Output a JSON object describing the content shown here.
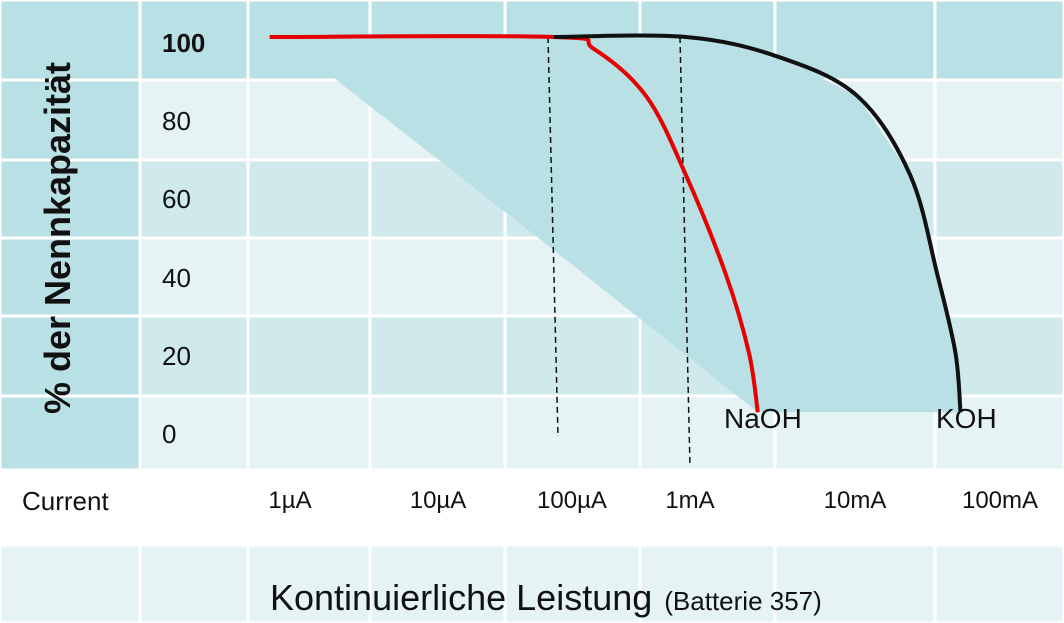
{
  "chart_data": {
    "type": "line",
    "ylabel": "% der Nennkapazität",
    "xlabel_main": "Kontinuierliche Leistung",
    "xlabel_note": "(Batterie 357)",
    "x_row_label": "Current",
    "x_scale": "log",
    "categories": [
      "1µA",
      "10µA",
      "100µA",
      "1mA",
      "10mA",
      "100mA"
    ],
    "y_ticks": [
      "100",
      "80",
      "60",
      "40",
      "20",
      "0"
    ],
    "ylim": [
      0,
      100
    ],
    "grid": true,
    "series": [
      {
        "name": "NaOH",
        "color": "#e60000",
        "points": [
          {
            "x": "0.7µA",
            "y": 100
          },
          {
            "x": "100µA",
            "y": 100
          },
          {
            "x": "200µA",
            "y": 97
          },
          {
            "x": "500µA",
            "y": 85
          },
          {
            "x": "1mA",
            "y": 65
          },
          {
            "x": "2mA",
            "y": 40
          },
          {
            "x": "3mA",
            "y": 20
          },
          {
            "x": "3.5mA",
            "y": 5
          }
        ]
      },
      {
        "name": "KOH",
        "color": "#111111",
        "points": [
          {
            "x": "100µA",
            "y": 100
          },
          {
            "x": "1mA",
            "y": 100
          },
          {
            "x": "5mA",
            "y": 95
          },
          {
            "x": "20mA",
            "y": 85
          },
          {
            "x": "50mA",
            "y": 65
          },
          {
            "x": "80mA",
            "y": 40
          },
          {
            "x": "110mA",
            "y": 20
          },
          {
            "x": "120mA",
            "y": 5
          }
        ]
      }
    ],
    "shaded_region": "area between the diagonal low boundary and the KOH curve",
    "dashed_markers": [
      "100µA",
      "1mA"
    ]
  }
}
